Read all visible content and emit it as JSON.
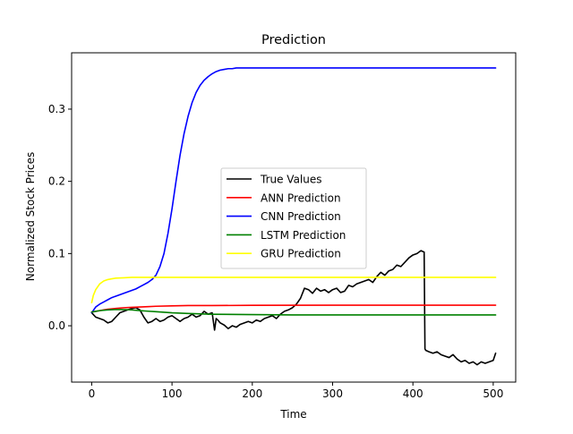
{
  "chart_data": {
    "type": "line",
    "title": "Prediction",
    "xlabel": "Time",
    "ylabel": "Normalized Stock Prices",
    "xlim": [
      -25,
      528
    ],
    "ylim": [
      -0.078,
      0.378
    ],
    "xticks": [
      0,
      100,
      200,
      300,
      400,
      500
    ],
    "xtick_labels": [
      "0",
      "100",
      "200",
      "300",
      "400",
      "500"
    ],
    "yticks": [
      0.0,
      0.1,
      0.2,
      0.3
    ],
    "ytick_labels": [
      "0.0",
      "0.1",
      "0.2",
      "0.3"
    ],
    "grid": false,
    "legend_position": "center",
    "series": [
      {
        "name": "True Values",
        "color": "#000000",
        "x": [
          0,
          5,
          10,
          15,
          20,
          25,
          30,
          35,
          40,
          45,
          50,
          55,
          60,
          65,
          70,
          75,
          80,
          85,
          90,
          95,
          100,
          105,
          110,
          115,
          120,
          125,
          130,
          135,
          140,
          145,
          150,
          153,
          155,
          157,
          160,
          165,
          170,
          175,
          180,
          185,
          190,
          195,
          200,
          205,
          210,
          215,
          220,
          225,
          230,
          235,
          240,
          245,
          250,
          255,
          260,
          265,
          270,
          275,
          280,
          285,
          290,
          295,
          300,
          305,
          310,
          315,
          320,
          325,
          330,
          335,
          340,
          345,
          350,
          355,
          360,
          365,
          370,
          375,
          380,
          385,
          390,
          395,
          400,
          405,
          410,
          414,
          415,
          416,
          420,
          425,
          430,
          435,
          440,
          445,
          450,
          455,
          460,
          465,
          470,
          475,
          480,
          485,
          490,
          495,
          500,
          503
        ],
        "values": [
          0.018,
          0.012,
          0.01,
          0.008,
          0.004,
          0.006,
          0.012,
          0.018,
          0.02,
          0.022,
          0.024,
          0.025,
          0.022,
          0.012,
          0.004,
          0.006,
          0.01,
          0.006,
          0.008,
          0.012,
          0.014,
          0.01,
          0.006,
          0.01,
          0.012,
          0.016,
          0.012,
          0.014,
          0.02,
          0.016,
          0.018,
          -0.006,
          0.01,
          0.008,
          0.004,
          0.001,
          -0.004,
          0.0,
          -0.002,
          0.002,
          0.004,
          0.006,
          0.004,
          0.008,
          0.006,
          0.01,
          0.012,
          0.014,
          0.01,
          0.016,
          0.02,
          0.022,
          0.025,
          0.03,
          0.038,
          0.052,
          0.05,
          0.045,
          0.052,
          0.048,
          0.05,
          0.046,
          0.05,
          0.052,
          0.046,
          0.048,
          0.056,
          0.054,
          0.058,
          0.06,
          0.062,
          0.064,
          0.06,
          0.068,
          0.074,
          0.07,
          0.076,
          0.078,
          0.084,
          0.082,
          0.088,
          0.094,
          0.098,
          0.1,
          0.104,
          0.102,
          -0.032,
          -0.034,
          -0.036,
          -0.038,
          -0.036,
          -0.04,
          -0.042,
          -0.044,
          -0.04,
          -0.046,
          -0.05,
          -0.048,
          -0.052,
          -0.05,
          -0.054,
          -0.05,
          -0.052,
          -0.05,
          -0.048,
          -0.038
        ]
      },
      {
        "name": "ANN Prediction",
        "color": "#ff0000",
        "x": [
          0,
          5,
          10,
          15,
          20,
          30,
          40,
          50,
          60,
          70,
          80,
          100,
          120,
          150,
          200,
          300,
          400,
          503
        ],
        "values": [
          0.019,
          0.02,
          0.021,
          0.022,
          0.023,
          0.024,
          0.025,
          0.0255,
          0.026,
          0.0265,
          0.027,
          0.0275,
          0.028,
          0.028,
          0.0283,
          0.0285,
          0.0285,
          0.0285
        ]
      },
      {
        "name": "CNN Prediction",
        "color": "#0000ff",
        "x": [
          0,
          5,
          10,
          15,
          20,
          25,
          30,
          35,
          40,
          45,
          50,
          55,
          60,
          65,
          70,
          75,
          80,
          85,
          90,
          95,
          100,
          105,
          110,
          115,
          120,
          125,
          130,
          135,
          140,
          145,
          150,
          155,
          160,
          165,
          170,
          175,
          180,
          190,
          200,
          220,
          250,
          300,
          400,
          503
        ],
        "values": [
          0.018,
          0.026,
          0.03,
          0.033,
          0.036,
          0.039,
          0.041,
          0.043,
          0.045,
          0.047,
          0.049,
          0.051,
          0.054,
          0.057,
          0.06,
          0.064,
          0.07,
          0.082,
          0.1,
          0.128,
          0.162,
          0.2,
          0.236,
          0.266,
          0.29,
          0.309,
          0.323,
          0.333,
          0.34,
          0.345,
          0.349,
          0.352,
          0.354,
          0.355,
          0.356,
          0.356,
          0.357,
          0.357,
          0.357,
          0.357,
          0.357,
          0.357,
          0.357,
          0.357
        ]
      },
      {
        "name": "LSTM Prediction",
        "color": "#008000",
        "x": [
          0,
          5,
          10,
          20,
          30,
          40,
          50,
          60,
          70,
          80,
          100,
          120,
          150,
          200,
          250,
          300,
          400,
          503
        ],
        "values": [
          0.019,
          0.02,
          0.021,
          0.022,
          0.0225,
          0.0225,
          0.022,
          0.021,
          0.0202,
          0.0195,
          0.018,
          0.017,
          0.016,
          0.0155,
          0.015,
          0.015,
          0.015,
          0.015
        ]
      },
      {
        "name": "GRU Prediction",
        "color": "#ffff00",
        "x": [
          0,
          2,
          5,
          10,
          15,
          20,
          25,
          30,
          40,
          50,
          60,
          80,
          100,
          150,
          200,
          300,
          400,
          503
        ],
        "values": [
          0.032,
          0.042,
          0.05,
          0.058,
          0.062,
          0.064,
          0.065,
          0.066,
          0.0665,
          0.067,
          0.067,
          0.067,
          0.067,
          0.067,
          0.067,
          0.067,
          0.067,
          0.067
        ]
      }
    ]
  }
}
